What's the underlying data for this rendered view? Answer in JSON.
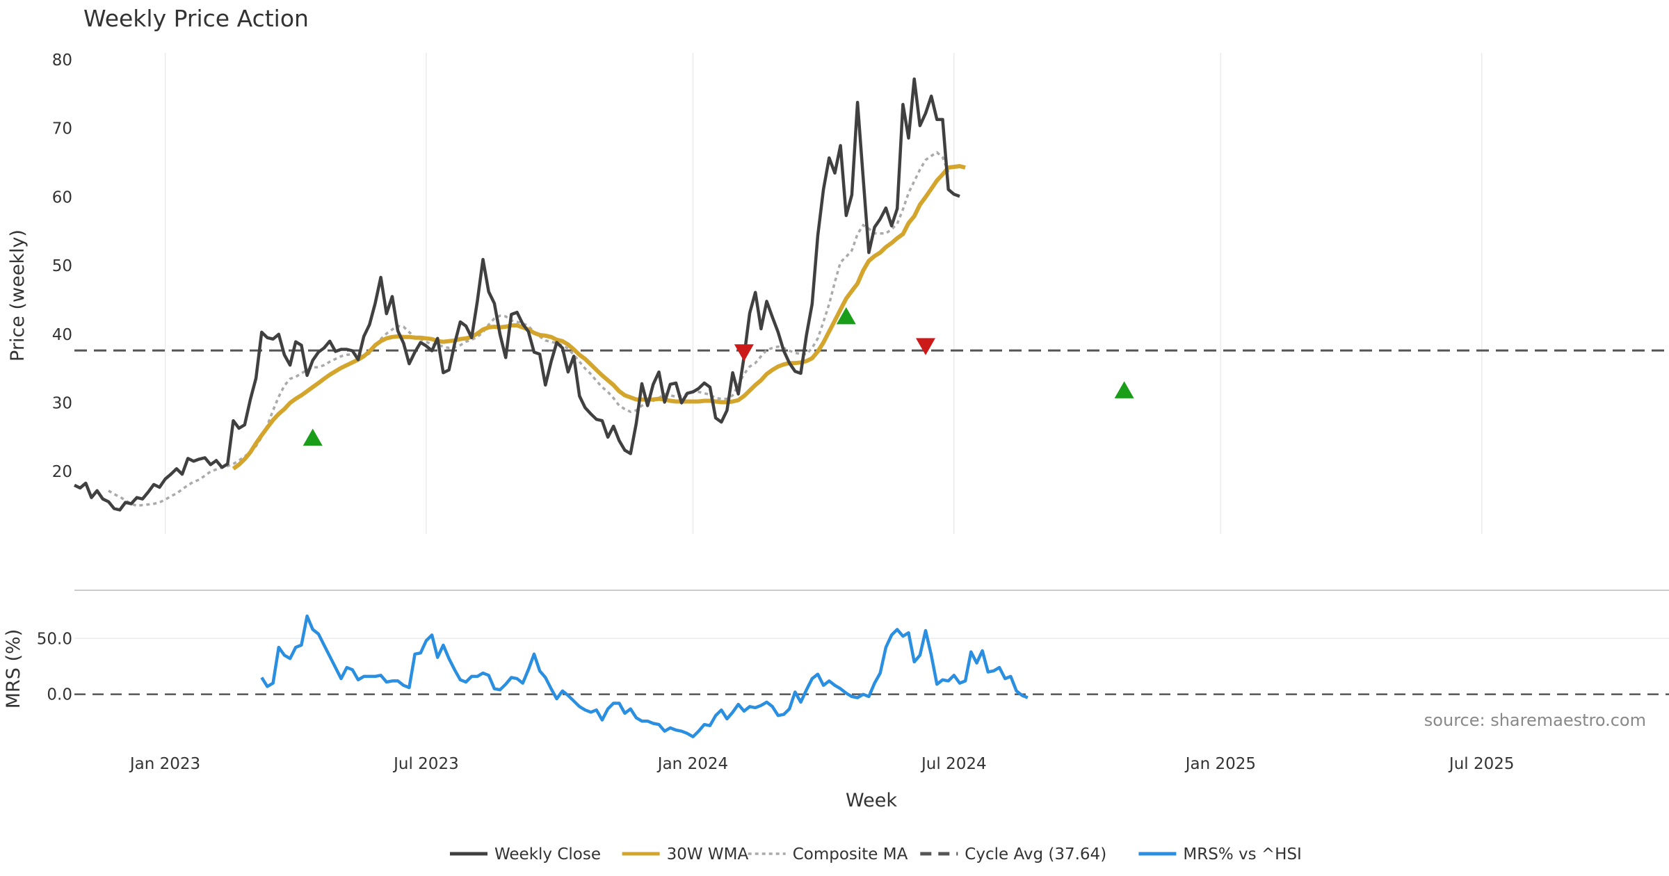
{
  "chart_data": {
    "type": "line",
    "title": "Weekly Price Action",
    "xlabel": "Week",
    "source_text": "source: sharemaestro.com",
    "x_tick_labels": [
      "Jan 2023",
      "Jul 2023",
      "Jan 2024",
      "Jul 2024",
      "Jan 2025",
      "Jul 2025"
    ],
    "x_tick_weeks": [
      9,
      55,
      102,
      148,
      195,
      241
    ],
    "x_range_weeks": [
      -7,
      274
    ],
    "colors": {
      "close": "#404040",
      "wma": "#d4a52c",
      "composite": "#aaaaaa",
      "cycle": "#555555",
      "mrs": "#2a8fe0",
      "buy": "#1a9e1a",
      "sell": "#cc1a1a"
    },
    "price_panel": {
      "ylabel": "Price (weekly)",
      "y_ticks": [
        20,
        30,
        40,
        50,
        60,
        70,
        80
      ],
      "ylim": [
        10.9,
        80
      ],
      "cycle_avg": 37.64,
      "start_week": -7,
      "weekly_close": [
        18.0,
        17.6,
        18.3,
        16.2,
        17.2,
        16.0,
        15.6,
        14.6,
        14.4,
        15.5,
        15.3,
        16.2,
        16.0,
        17.0,
        18.1,
        17.7,
        18.9,
        19.6,
        20.4,
        19.6,
        21.9,
        21.5,
        21.8,
        22.0,
        21.0,
        21.6,
        20.6,
        21.1,
        27.4,
        26.3,
        26.8,
        30.5,
        33.6,
        40.3,
        39.5,
        39.3,
        40.0,
        37.0,
        35.5,
        38.9,
        38.4,
        34.0,
        36.2,
        37.4,
        38.0,
        39.0,
        37.5,
        37.8,
        37.8,
        37.6,
        36.3,
        39.7,
        41.4,
        44.5,
        48.3,
        43.0,
        45.5,
        40.5,
        38.7,
        35.7,
        37.4,
        38.8,
        38.3,
        37.6,
        39.4,
        34.4,
        34.8,
        38.6,
        41.8,
        41.2,
        39.5,
        44.8,
        50.9,
        46.2,
        44.5,
        40.0,
        36.6,
        42.9,
        43.2,
        41.5,
        40.4,
        37.4,
        37.1,
        32.6,
        36.0,
        38.8,
        38.0,
        34.5,
        36.8,
        31.0,
        29.3,
        28.4,
        27.6,
        27.4,
        25.0,
        26.6,
        24.5,
        23.1,
        22.6,
        27.0,
        32.8,
        29.6,
        32.7,
        34.5,
        30.1,
        32.7,
        32.9,
        30.0,
        31.4,
        31.6,
        32.1,
        32.9,
        32.3,
        27.8,
        27.2,
        28.9,
        34.4,
        31.3,
        36.7,
        43.1,
        46.1,
        40.8,
        44.8,
        42.5,
        40.3,
        37.6,
        35.8,
        34.6,
        34.3,
        39.9,
        44.4,
        54.4,
        61.1,
        65.7,
        63.5,
        67.5,
        57.3,
        60.3,
        73.8,
        62.7,
        51.9,
        55.6,
        56.8,
        58.4,
        55.8,
        58.3,
        73.5,
        68.6,
        77.2,
        70.4,
        72.2,
        74.7,
        71.3,
        71.3,
        61.1,
        60.4,
        60.1
      ],
      "wma_30w": {
        "start_week": 21,
        "values": [
          20.4,
          21.0,
          21.8,
          22.8,
          24.1,
          25.3,
          26.4,
          27.5,
          28.4,
          29.1,
          30.0,
          30.6,
          31.1,
          31.7,
          32.3,
          32.9,
          33.5,
          34.1,
          34.6,
          35.1,
          35.5,
          35.9,
          36.3,
          36.8,
          37.5,
          38.4,
          39.0,
          39.4,
          39.6,
          39.7,
          39.6,
          39.6,
          39.5,
          39.5,
          39.4,
          39.3,
          39.0,
          38.9,
          39.0,
          39.1,
          39.3,
          39.4,
          39.6,
          40.1,
          40.7,
          41.0,
          41.1,
          41.0,
          41.1,
          41.3,
          41.3,
          41.0,
          40.7,
          40.2,
          39.9,
          39.8,
          39.6,
          39.2,
          39.0,
          38.5,
          37.8,
          37.0,
          36.4,
          35.6,
          34.8,
          34.0,
          33.3,
          32.6,
          31.7,
          31.1,
          30.8,
          30.5,
          30.5,
          30.5,
          30.5,
          30.6,
          30.5,
          30.3,
          30.2,
          30.2,
          30.2,
          30.2,
          30.2,
          30.3,
          30.3,
          30.2,
          30.1,
          30.1,
          30.2,
          30.4,
          31.0,
          31.8,
          32.6,
          33.3,
          34.2,
          34.8,
          35.3,
          35.6,
          35.8,
          35.8,
          35.9,
          36.1,
          36.5,
          37.5,
          38.8,
          40.4,
          42.0,
          43.6,
          45.2,
          46.3,
          47.4,
          49.3,
          50.7,
          51.4,
          51.9,
          52.7,
          53.3,
          54.0,
          54.6,
          56.2,
          57.2,
          58.9,
          60.0,
          61.2,
          62.4,
          63.3,
          64.3,
          64.4,
          64.5,
          64.3
        ]
      },
      "composite_ma": {
        "start_week": -1,
        "values": [
          17.2,
          16.7,
          16.3,
          15.8,
          15.3,
          15.0,
          15.1,
          15.2,
          15.3,
          15.5,
          15.9,
          16.4,
          16.8,
          17.4,
          18.0,
          18.5,
          18.8,
          19.4,
          20.0,
          20.3,
          20.6,
          20.8,
          21.1,
          21.6,
          22.2,
          22.8,
          23.7,
          25.0,
          26.7,
          28.9,
          30.9,
          32.5,
          33.5,
          33.8,
          34.3,
          34.8,
          35.2,
          35.2,
          35.5,
          36.0,
          36.4,
          36.8,
          37.0,
          37.1,
          37.0,
          36.8,
          37.2,
          38.4,
          39.3,
          40.1,
          40.7,
          41.2,
          41.1,
          40.3,
          39.6,
          39.3,
          38.9,
          38.5,
          38.5,
          38.2,
          38.0,
          38.1,
          38.4,
          38.9,
          39.2,
          39.6,
          40.3,
          41.4,
          42.3,
          42.7,
          42.6,
          42.0,
          41.8,
          41.6,
          41.2,
          40.3,
          39.7,
          39.1,
          38.9,
          38.7,
          38.4,
          37.9,
          37.0,
          36.0,
          35.0,
          34.2,
          33.2,
          32.3,
          31.6,
          30.7,
          29.6,
          29.1,
          28.7,
          28.9,
          29.6,
          30.1,
          30.3,
          30.7,
          31.3,
          31.1,
          30.9,
          31.0,
          31.3,
          31.7,
          31.6,
          31.4,
          31.2,
          30.7,
          30.6,
          30.6,
          31.1,
          32.6,
          34.2,
          35.3,
          35.8,
          36.8,
          37.7,
          38.0,
          38.2,
          38.0,
          37.6,
          37.3,
          37.1,
          37.1,
          38.0,
          39.4,
          41.8,
          44.4,
          47.6,
          50.5,
          51.3,
          52.2,
          54.6,
          55.9,
          55.4,
          54.7,
          54.7,
          54.7,
          55.3,
          56.1,
          58.2,
          60.6,
          62.3,
          64.0,
          65.4,
          66.0,
          66.5,
          65.8,
          63.6
        ]
      },
      "buy_signals": [
        {
          "week": 35,
          "price": 24.9
        },
        {
          "week": 129,
          "price": 42.6
        },
        {
          "week": 178,
          "price": 31.8
        }
      ],
      "sell_signals": [
        {
          "week": 111,
          "price": 37.4
        },
        {
          "week": 143,
          "price": 38.3
        }
      ]
    },
    "mrs_panel": {
      "ylabel": "MRS (%)",
      "y_ticks": [
        0.0,
        50.0
      ],
      "y_tick_labels": [
        "0.0",
        "50.0"
      ],
      "ylim": [
        -45,
        85
      ],
      "start_week": 26,
      "values": [
        15,
        7,
        10,
        42,
        35,
        32,
        42,
        44,
        70,
        58,
        54,
        44,
        34,
        24,
        14,
        24,
        22,
        13,
        16,
        16,
        16,
        17,
        11,
        12,
        12,
        8,
        6,
        36,
        37,
        48,
        53,
        33,
        44,
        32,
        22,
        13,
        11,
        16,
        16,
        19,
        17,
        5,
        4,
        9,
        15,
        14,
        10,
        22,
        36,
        21,
        15,
        5,
        -4,
        3,
        -1,
        -6,
        -11,
        -14,
        -16,
        -14,
        -23,
        -13,
        -8,
        -8,
        -17,
        -13,
        -21,
        -24,
        -24,
        -26,
        -27,
        -33,
        -30,
        -32,
        -33,
        -35,
        -38,
        -33,
        -27,
        -28,
        -19,
        -14,
        -22,
        -16,
        -9,
        -15,
        -11,
        -12,
        -10,
        -7,
        -11,
        -19,
        -18,
        -13,
        2,
        -7,
        4,
        14,
        18,
        8,
        12,
        8,
        5,
        1,
        -2,
        -3,
        0,
        -2,
        10,
        19,
        42,
        53,
        58,
        52,
        55,
        29,
        35,
        57,
        35,
        9,
        13,
        12,
        17,
        10,
        12,
        38,
        28,
        39,
        20,
        21,
        24,
        14,
        16,
        3,
        -1,
        -3
      ]
    },
    "legend": [
      {
        "key": "close",
        "label": "Weekly Close",
        "style": "solid"
      },
      {
        "key": "wma",
        "label": "30W WMA",
        "style": "solid"
      },
      {
        "key": "composite",
        "label": "Composite MA",
        "style": "dotted"
      },
      {
        "key": "cycle",
        "label": "Cycle Avg (37.64)",
        "style": "dashed"
      },
      {
        "key": "mrs",
        "label": "MRS% vs ^HSI",
        "style": "solid"
      }
    ]
  }
}
